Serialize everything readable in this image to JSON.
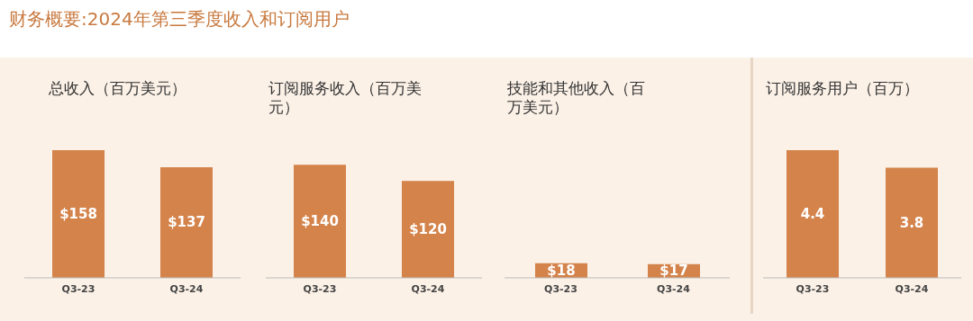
{
  "chart_data": [
    {
      "type": "bar",
      "title": "财务概要:2024年第三季度收入和订阅用户",
      "subtitle": "总收入（百万美元）",
      "categories": [
        "Q3-23",
        "Q3-24"
      ],
      "values": [
        158,
        137
      ],
      "value_labels": [
        "$158",
        "$137"
      ],
      "color": "#d4834b"
    },
    {
      "type": "bar",
      "subtitle": "订阅服务收入（百万美元）",
      "categories": [
        "Q3-23",
        "Q3-24"
      ],
      "values": [
        140,
        120
      ],
      "value_labels": [
        "$140",
        "$120"
      ],
      "color": "#d4834b"
    },
    {
      "type": "bar",
      "subtitle": "技能和其他收入（百万美元）",
      "categories": [
        "Q3-23",
        "Q3-24"
      ],
      "values": [
        18,
        17
      ],
      "value_labels": [
        "$18",
        "$17"
      ],
      "color": "#d4834b"
    },
    {
      "type": "bar",
      "subtitle": "订阅服务用户（百万）",
      "categories": [
        "Q3-23",
        "Q3-24"
      ],
      "values": [
        4.4,
        3.8
      ],
      "value_labels": [
        "4.4",
        "3.8"
      ],
      "color": "#d4834b"
    }
  ]
}
